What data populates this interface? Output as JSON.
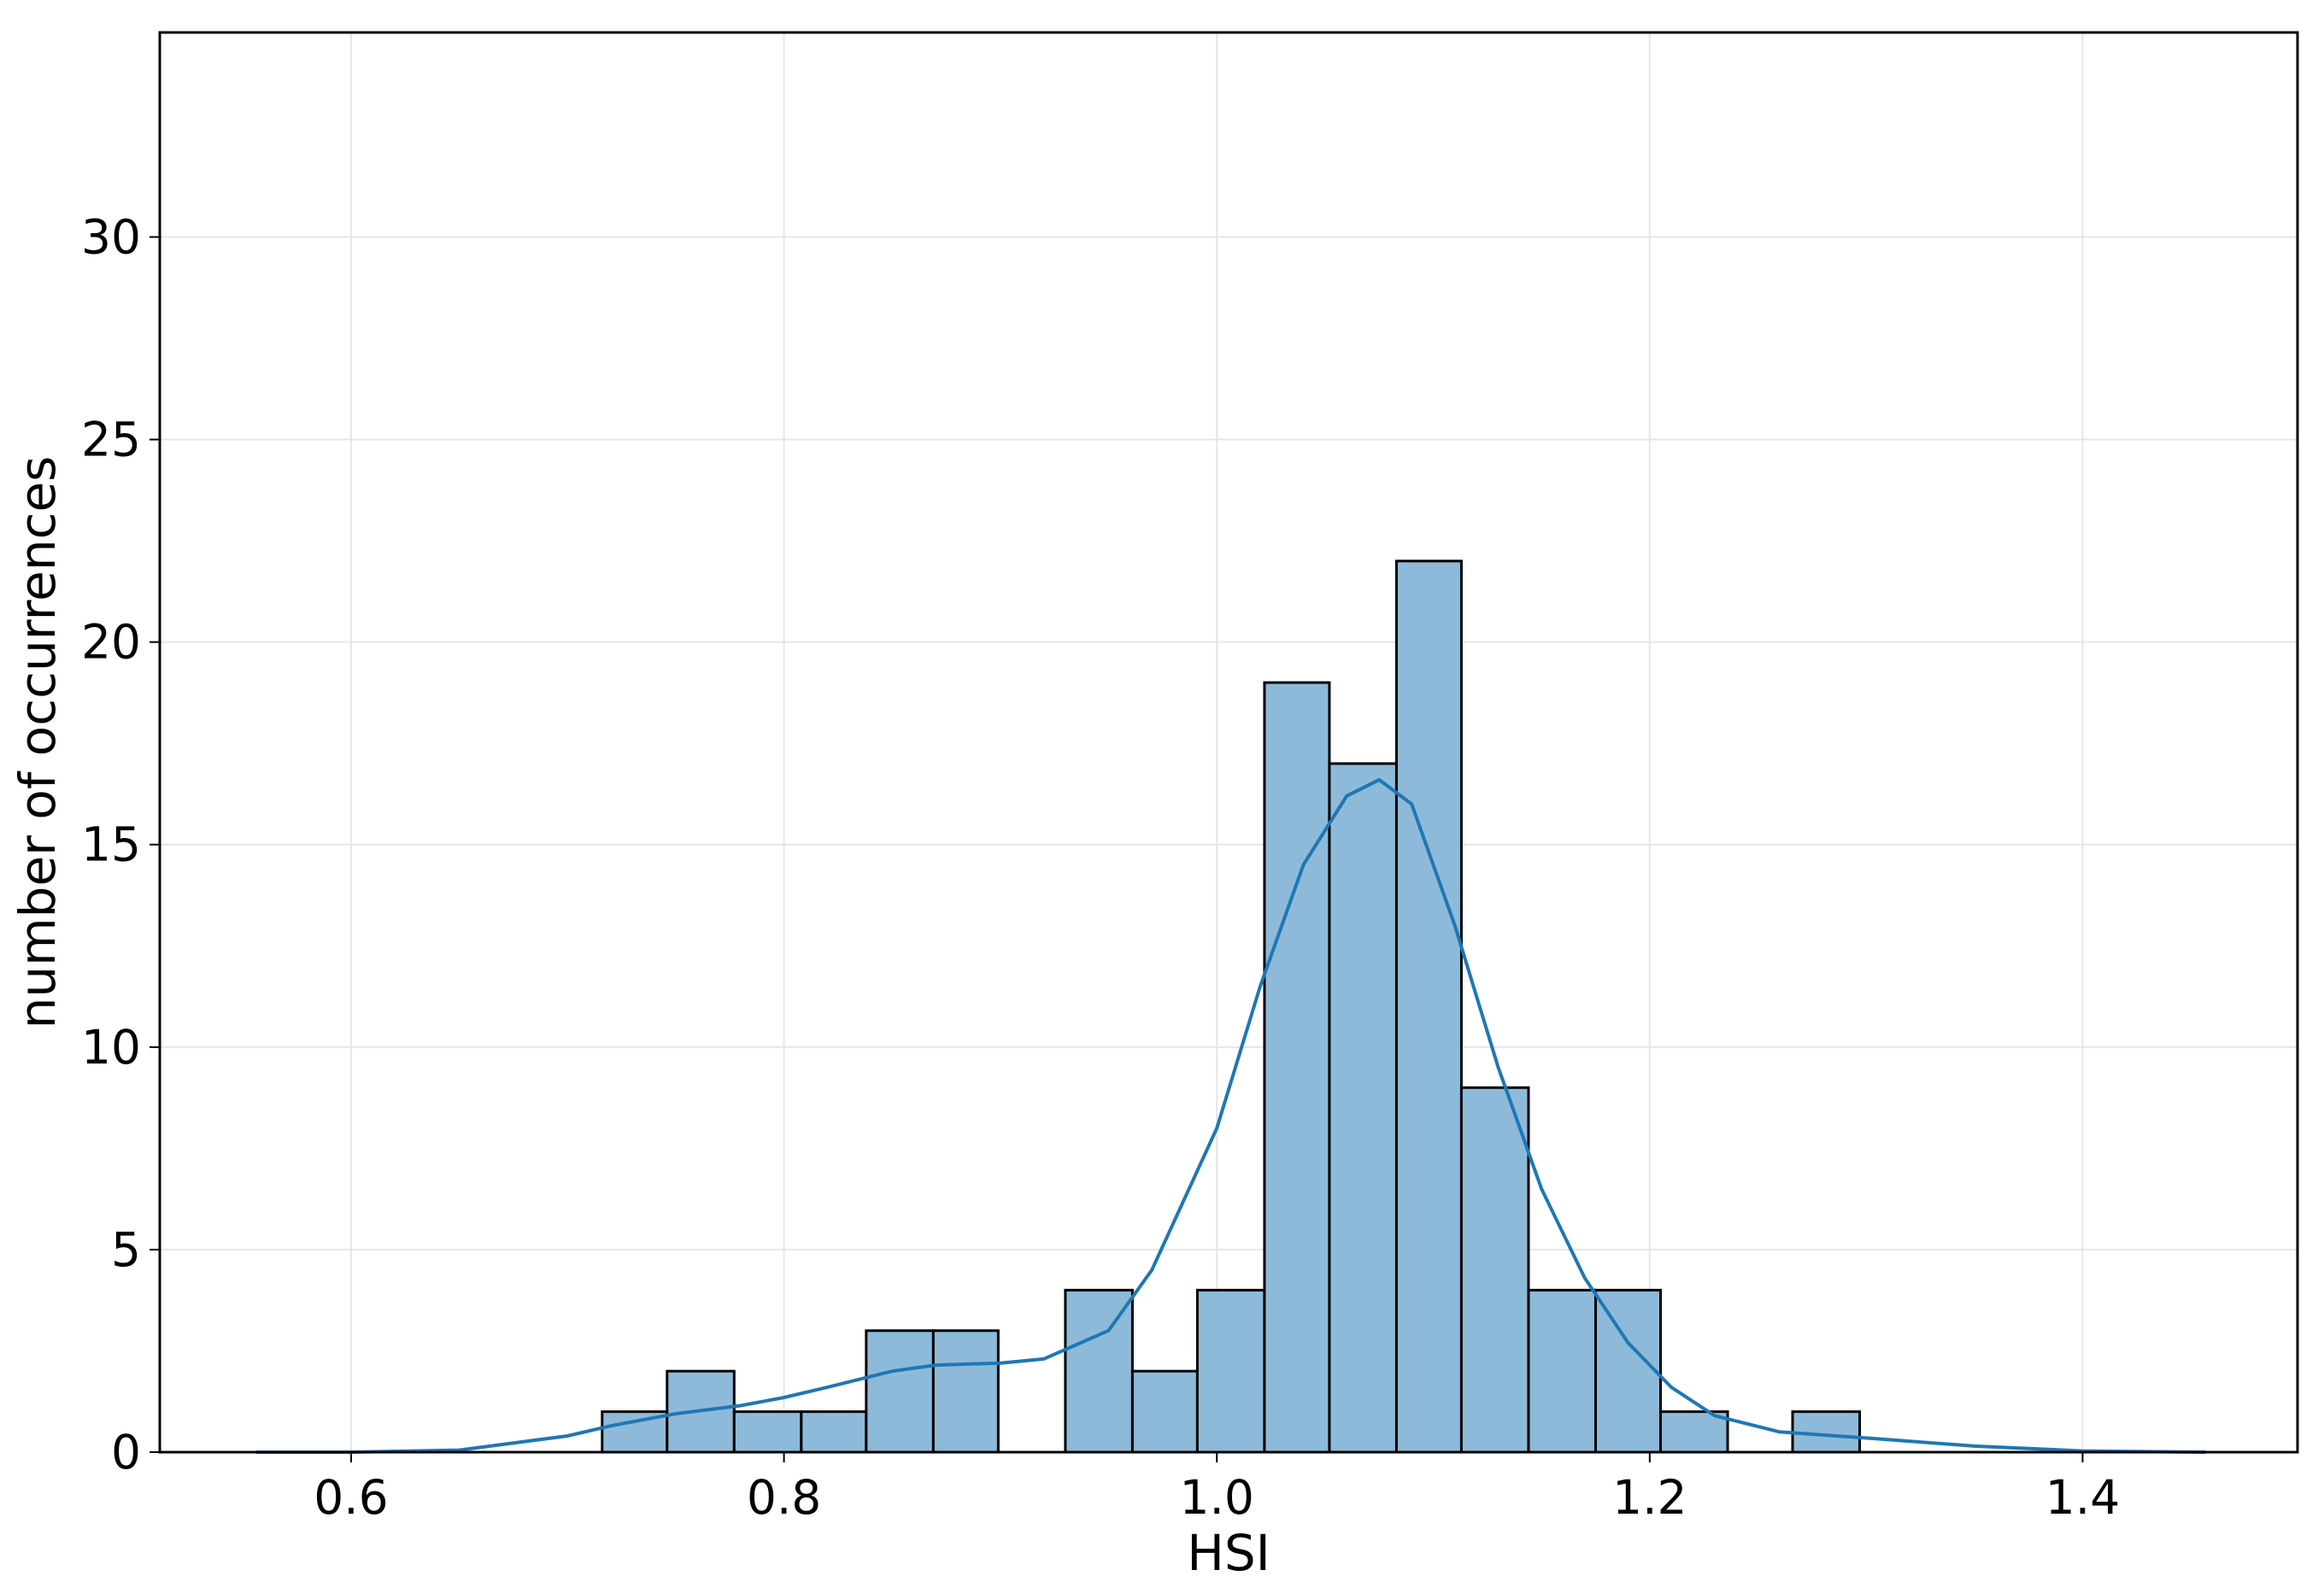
{
  "chart_data": {
    "type": "histogram",
    "xlabel": "HSI",
    "ylabel": "number of occurrences",
    "bins": [
      0.716,
      0.746,
      0.777,
      0.808,
      0.838,
      0.869,
      0.899,
      0.93,
      0.961,
      0.991,
      1.022,
      1.052,
      1.083,
      1.113,
      1.144,
      1.175,
      1.205,
      1.236,
      1.266,
      1.297
    ],
    "counts": [
      1,
      2,
      1,
      1,
      3,
      3,
      0,
      4,
      2,
      4,
      19,
      17,
      22,
      9,
      4,
      4,
      1,
      0,
      1
    ],
    "color": "#8ebad9",
    "edgecolor": "#000000",
    "kde": {
      "color": "#1f77b4",
      "x": [
        0.556,
        0.6,
        0.65,
        0.7,
        0.72,
        0.75,
        0.78,
        0.8,
        0.82,
        0.85,
        0.87,
        0.9,
        0.92,
        0.95,
        0.97,
        1.0,
        1.02,
        1.04,
        1.06,
        1.075,
        1.09,
        1.11,
        1.13,
        1.15,
        1.17,
        1.19,
        1.21,
        1.23,
        1.26,
        1.3,
        1.35,
        1.4,
        1.457
      ],
      "y": [
        0,
        0,
        0.05,
        0.4,
        0.65,
        0.95,
        1.15,
        1.35,
        1.6,
        2.0,
        2.15,
        2.2,
        2.3,
        3.0,
        4.5,
        8.0,
        11.5,
        14.5,
        16.2,
        16.6,
        16.0,
        13.0,
        9.5,
        6.5,
        4.3,
        2.7,
        1.6,
        0.9,
        0.5,
        0.35,
        0.15,
        0.03,
        0
      ]
    },
    "xlim": [
      0.5116,
      1.4993
    ],
    "ylim": [
      0,
      35.05
    ],
    "xticks": [
      0.6,
      0.8,
      {
        "value": 1,
        "label": "1.0"
      },
      1.2,
      1.4
    ],
    "yticks": [
      0,
      5,
      10,
      15,
      20,
      25,
      30
    ],
    "grid": true
  }
}
